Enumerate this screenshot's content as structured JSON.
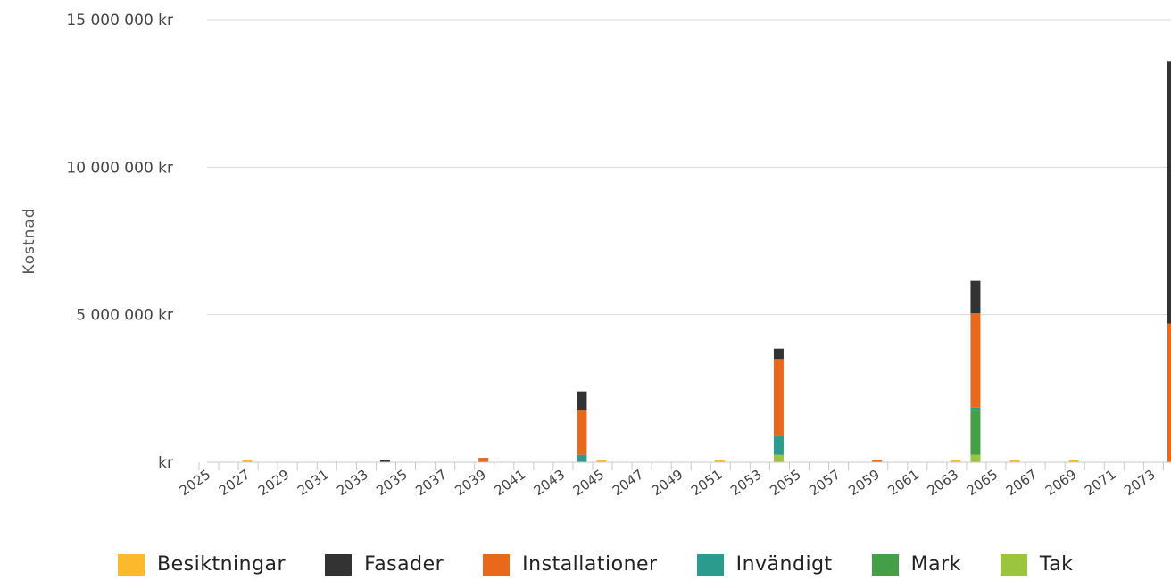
{
  "chart_data": {
    "type": "bar",
    "stacked": true,
    "title": "",
    "xlabel": "",
    "ylabel": "Kostnad",
    "ylim": [
      0,
      15000000
    ],
    "y_ticks": [
      {
        "value": 0,
        "label": "kr"
      },
      {
        "value": 5000000,
        "label": "5 000 000 kr"
      },
      {
        "value": 10000000,
        "label": "10 000 000 kr"
      },
      {
        "value": 15000000,
        "label": "15 000 000 kr"
      }
    ],
    "x_tick_labels": [
      "2025",
      "2027",
      "2029",
      "2031",
      "2033",
      "2035",
      "2037",
      "2039",
      "2041",
      "2043",
      "2045",
      "2047",
      "2049",
      "2051",
      "2053",
      "2055",
      "2057",
      "2059",
      "2061",
      "2063",
      "2065",
      "2067",
      "2069",
      "2071",
      "2073"
    ],
    "x_start": 2025,
    "x_end": 2074,
    "grid": true,
    "legend_position": "bottom",
    "series": [
      {
        "name": "Besiktningar",
        "color": "#FBB92D",
        "points": [
          [
            2027,
            60000
          ],
          [
            2045,
            60000
          ],
          [
            2051,
            60000
          ],
          [
            2063,
            50000
          ],
          [
            2066,
            60000
          ],
          [
            2069,
            60000
          ]
        ]
      },
      {
        "name": "Fasader",
        "color": "#333333",
        "points": [
          [
            2034,
            80000
          ],
          [
            2044,
            650000
          ],
          [
            2054,
            350000
          ],
          [
            2064,
            1100000
          ],
          [
            2074,
            8900000
          ]
        ]
      },
      {
        "name": "Installationer",
        "color": "#E8691C",
        "points": [
          [
            2039,
            150000
          ],
          [
            2044,
            1500000
          ],
          [
            2054,
            2600000
          ],
          [
            2059,
            80000
          ],
          [
            2064,
            3200000
          ],
          [
            2074,
            4700000
          ]
        ]
      },
      {
        "name": "Invändigt",
        "color": "#2A9B8E",
        "points": [
          [
            2044,
            250000
          ],
          [
            2054,
            650000
          ],
          [
            2064,
            100000
          ]
        ]
      },
      {
        "name": "Mark",
        "color": "#44A047",
        "points": [
          [
            2064,
            1500000
          ]
        ]
      },
      {
        "name": "Tak",
        "color": "#9BC53D",
        "points": [
          [
            2054,
            250000
          ],
          [
            2064,
            250000
          ]
        ]
      }
    ]
  }
}
